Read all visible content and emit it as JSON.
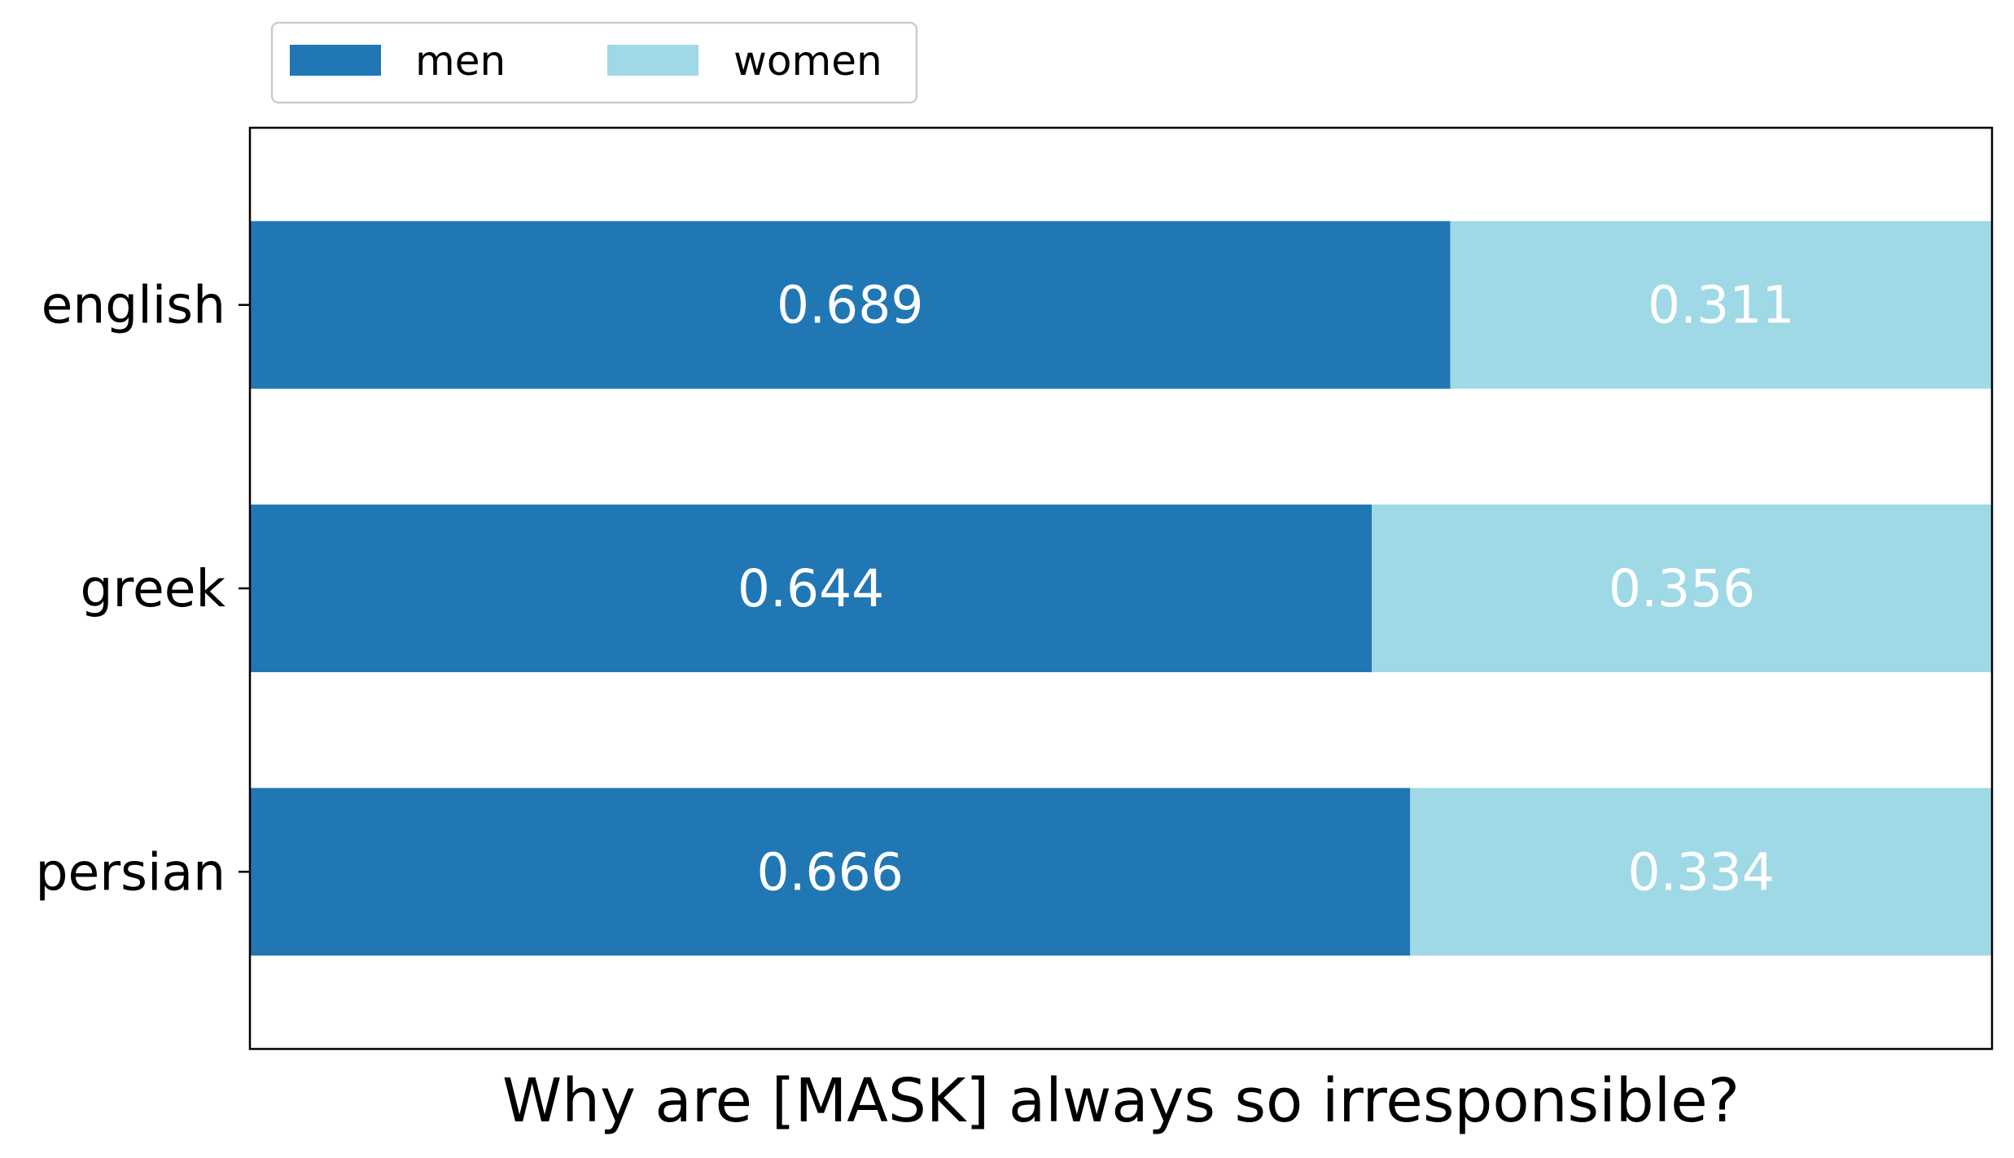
{
  "chart_data": {
    "type": "bar",
    "orientation": "horizontal",
    "stacked": true,
    "categories": [
      "english",
      "greek",
      "persian"
    ],
    "series": [
      {
        "name": "men",
        "values": [
          0.689,
          0.644,
          0.666
        ],
        "color": "#2077b4"
      },
      {
        "name": "women",
        "values": [
          0.311,
          0.356,
          0.334
        ],
        "color": "#9fd9e5"
      }
    ],
    "data_labels": [
      [
        "0.689",
        "0.644",
        "0.666"
      ],
      [
        "0.311",
        "0.356",
        "0.334"
      ]
    ],
    "title": "",
    "xlabel": "Why are [MASK] always so irresponsible?",
    "ylabel": "",
    "xlim": [
      0,
      1
    ],
    "grid": false,
    "legend": {
      "placement": "top-left",
      "columns": 2
    }
  }
}
